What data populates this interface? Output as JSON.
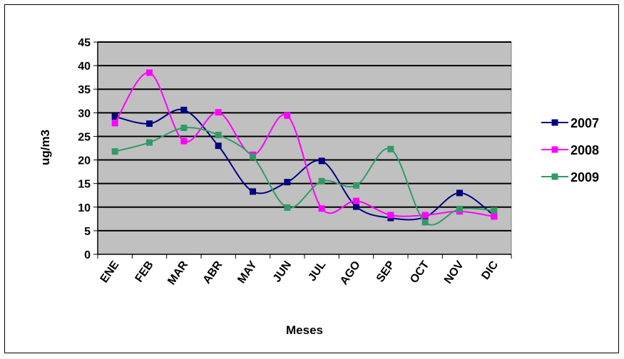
{
  "chart_data": {
    "type": "line",
    "title": "",
    "xlabel": "Meses",
    "ylabel": "ug/m3",
    "ylim": [
      0,
      45
    ],
    "yticks": [
      0,
      5,
      10,
      15,
      20,
      25,
      30,
      35,
      40,
      45
    ],
    "categories": [
      "ENE",
      "FEB",
      "MAR",
      "ABR",
      "MAY",
      "JUN",
      "JUL",
      "AGO",
      "SEP",
      "OCT",
      "NOV",
      "DIC"
    ],
    "grid": true,
    "legend": "right",
    "plot_background": "#c0c0c0",
    "series": [
      {
        "name": "2007",
        "color": "#000080",
        "values": [
          29.2,
          27.7,
          30.6,
          23.0,
          13.3,
          15.3,
          19.8,
          10.1,
          7.7,
          7.9,
          13.0,
          8.2
        ]
      },
      {
        "name": "2008",
        "color": "#ff00ff",
        "values": [
          27.8,
          38.5,
          24.0,
          30.1,
          21.1,
          29.4,
          9.7,
          11.3,
          8.3,
          8.3,
          9.1,
          8.0
        ]
      },
      {
        "name": "2009",
        "color": "#339966",
        "values": [
          21.8,
          23.7,
          26.8,
          25.3,
          20.7,
          9.9,
          15.5,
          14.6,
          22.3,
          6.8,
          9.6,
          9.3
        ]
      }
    ]
  }
}
